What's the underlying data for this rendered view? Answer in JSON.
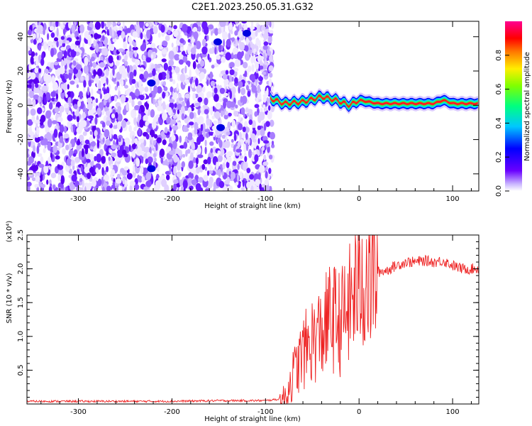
{
  "title": "C2E1.2023.250.05.31.G32",
  "colors": {
    "snr_line": "#ee2222",
    "scatter_fill": "#5a00ff",
    "background": "#ffffff",
    "axis": "#000000"
  },
  "chart_data": [
    {
      "type": "heatmap",
      "title": "C2E1.2023.250.05.31.G32",
      "xlabel": "Height of straight line (km)",
      "ylabel": "Frequency (Hz)",
      "xlim": [
        -355,
        128
      ],
      "ylim": [
        -50,
        49
      ],
      "x_ticks": [
        "-300",
        "-200",
        "-100",
        "0",
        "100"
      ],
      "y_ticks": [
        "-40",
        "-20",
        "0",
        "20",
        "40"
      ],
      "colorbar": {
        "label": "Normalized spectral amplitude",
        "range": [
          0.0,
          1.0
        ],
        "ticks": [
          "0.0",
          "0.2",
          "0.4",
          "0.6",
          "0.8"
        ],
        "colormap": "rainbow (purple-blue-cyan-green-yellow-red-magenta)"
      },
      "description_regions": {
        "noise_region_x": [
          -355,
          -92
        ],
        "signal_ridge": {
          "x": [
            -95,
            -80,
            -60,
            -40,
            -25,
            -10,
            0,
            20,
            50,
            80,
            90,
            100,
            128
          ],
          "freq_hz": [
            4,
            1,
            2,
            5,
            3,
            0,
            3,
            1,
            1,
            1,
            3,
            1,
            1
          ]
        }
      }
    },
    {
      "type": "line",
      "xlabel": "Height of straight line (km)",
      "ylabel": "SNR (10 * v/v)",
      "y_multiplier": "(x10⁴)",
      "xlim": [
        -355,
        128
      ],
      "ylim": [
        0.0,
        2.5
      ],
      "x_ticks": [
        "-300",
        "-200",
        "-100",
        "0",
        "100"
      ],
      "y_ticks": [
        "0.5",
        "1.0",
        "1.5",
        "2.0",
        "2.5"
      ],
      "series": [
        {
          "x": [
            -355,
            -300,
            -250,
            -200,
            -150,
            -100,
            -80,
            -70,
            -60,
            -50,
            -40,
            -30,
            -20,
            -10,
            0,
            10,
            20,
            30,
            40,
            50,
            60,
            70,
            80,
            90,
            100,
            110,
            120,
            128
          ],
          "y": [
            0.04,
            0.04,
            0.04,
            0.04,
            0.05,
            0.05,
            0.08,
            0.45,
            0.75,
            0.95,
            1.05,
            1.3,
            1.2,
            1.45,
            1.85,
            1.9,
            1.95,
            1.98,
            2.05,
            2.1,
            2.1,
            2.12,
            2.1,
            2.12,
            2.05,
            2.0,
            2.0,
            2.0
          ]
        }
      ]
    }
  ]
}
